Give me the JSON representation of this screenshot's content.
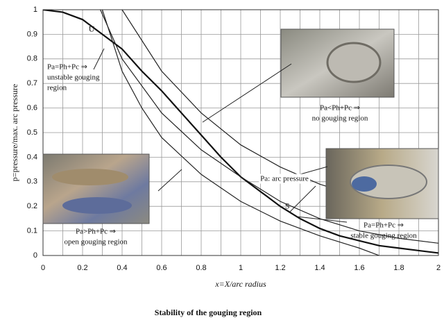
{
  "chart_data": {
    "type": "line",
    "title": "Stability of the gouging region",
    "xlabel": "x=X/arc radius",
    "ylabel": "p=pressure/max. arc pressure",
    "xlim": [
      0,
      2
    ],
    "ylim": [
      0,
      1
    ],
    "xticks": [
      0,
      0.2,
      0.4,
      0.6,
      0.8,
      1,
      1.2,
      1.4,
      1.6,
      1.8,
      2
    ],
    "yticks": [
      0,
      0.1,
      0.2,
      0.3,
      0.4,
      0.5,
      0.6,
      0.7,
      0.8,
      0.9,
      1
    ],
    "grid": true,
    "series": [
      {
        "color": "#111111",
        "line_width": 2.2,
        "x": [
          0,
          0.1,
          0.2,
          0.3,
          0.4,
          0.5,
          0.6,
          0.7,
          0.8,
          0.9,
          1,
          1.1,
          1.2,
          1.3,
          1.4,
          1.5,
          1.6,
          1.7,
          1.8,
          1.9,
          2
        ],
        "values": [
          1,
          0.99,
          0.96,
          0.9,
          0.84,
          0.75,
          0.67,
          0.58,
          0.49,
          0.4,
          0.32,
          0.26,
          0.2,
          0.15,
          0.11,
          0.08,
          0.06,
          0.04,
          0.03,
          0.02,
          0.01
        ]
      },
      {
        "color": "#222222",
        "line_width": 1.2,
        "x": [
          0.3,
          0.4,
          0.5,
          0.6,
          0.8,
          1,
          1.2,
          1.4,
          1.6,
          1.7
        ],
        "values": [
          1,
          0.75,
          0.6,
          0.48,
          0.33,
          0.22,
          0.14,
          0.08,
          0.03,
          0
        ]
      },
      {
        "color": "#222222",
        "line_width": 1.2,
        "x": [
          0.29,
          0.4,
          0.6,
          0.8,
          1,
          1.2,
          1.4,
          1.6,
          1.8,
          2
        ],
        "values": [
          1,
          0.8,
          0.58,
          0.43,
          0.32,
          0.22,
          0.15,
          0.1,
          0.07,
          0.05
        ]
      },
      {
        "color": "#222222",
        "line_width": 1.2,
        "x": [
          0.4,
          0.6,
          0.8,
          1,
          1.2,
          1.4,
          1.6,
          1.8,
          2
        ],
        "values": [
          1,
          0.75,
          0.58,
          0.45,
          0.36,
          0.29,
          0.24,
          0.2,
          0.16
        ]
      }
    ],
    "point_labels": [
      {
        "text": "U",
        "x": 0.26,
        "y": 0.89
      },
      {
        "text": "S",
        "x": 1.25,
        "y": 0.17
      }
    ],
    "annotations": [
      {
        "lines": [
          "Pa=Ph+Pc ⇒",
          "unstable gouging",
          "region"
        ]
      },
      {
        "lines": [
          "Pa<Ph+Pc ⇒",
          "no gouging region"
        ]
      },
      {
        "lines": [
          "Pa: arc pressure"
        ]
      },
      {
        "lines": [
          "Pa>Ph+Pc ⇒",
          "open gouging region"
        ]
      },
      {
        "lines": [
          "Pa=Ph+Pc ⇒",
          "stable gouging region"
        ]
      }
    ]
  }
}
